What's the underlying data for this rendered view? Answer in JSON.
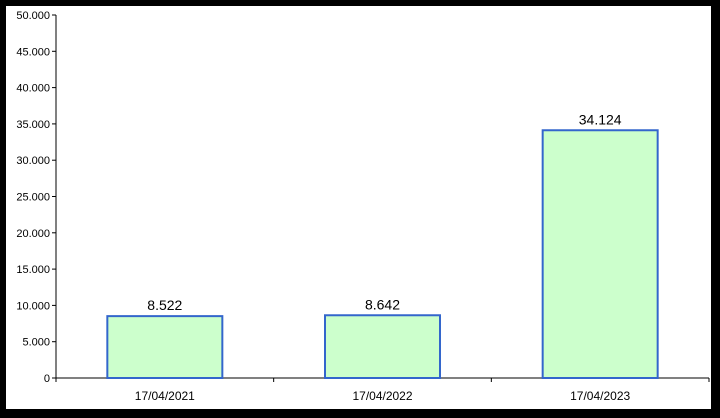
{
  "chart_data": {
    "type": "bar",
    "title": "",
    "xlabel": "",
    "ylabel": "",
    "categories": [
      "17/04/2021",
      "17/04/2022",
      "17/04/2023"
    ],
    "values": [
      8522,
      8642,
      34124
    ],
    "value_labels": [
      "8.522",
      "8.642",
      "34.124"
    ],
    "ylim": [
      0,
      50000
    ],
    "yticks": [
      0,
      5000,
      10000,
      15000,
      20000,
      25000,
      30000,
      35000,
      40000,
      45000,
      50000
    ],
    "ytick_labels": [
      "0",
      "5.000",
      "10.000",
      "15.000",
      "20.000",
      "25.000",
      "30.000",
      "35.000",
      "40.000",
      "45.000",
      "50.000"
    ],
    "grid": false,
    "legend": "none",
    "bar_fill": "#ccffcc",
    "bar_stroke": "#3366cc",
    "background": "#ffffff",
    "frame": "#000000"
  }
}
